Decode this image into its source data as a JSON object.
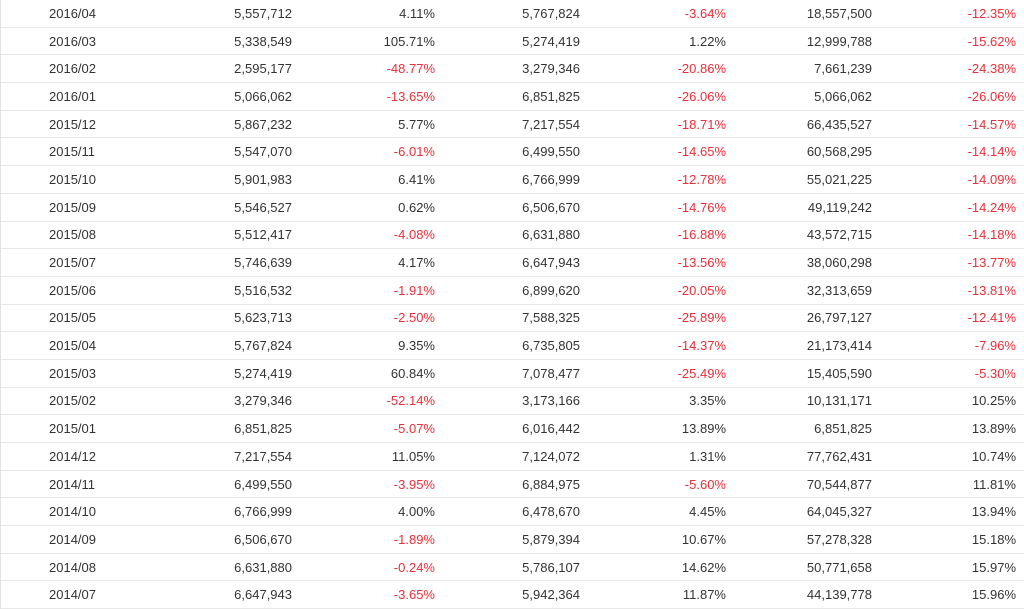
{
  "colors": {
    "negative": "#e8303a",
    "text": "#333333",
    "grid": "#e8e8e8"
  },
  "rows": [
    {
      "month": "2016/04",
      "v1": "5,557,712",
      "p1": "4.11%",
      "v2": "5,767,824",
      "p2": "-3.64%",
      "v3": "18,557,500",
      "p3": "-12.35%"
    },
    {
      "month": "2016/03",
      "v1": "5,338,549",
      "p1": "105.71%",
      "v2": "5,274,419",
      "p2": "1.22%",
      "v3": "12,999,788",
      "p3": "-15.62%"
    },
    {
      "month": "2016/02",
      "v1": "2,595,177",
      "p1": "-48.77%",
      "v2": "3,279,346",
      "p2": "-20.86%",
      "v3": "7,661,239",
      "p3": "-24.38%"
    },
    {
      "month": "2016/01",
      "v1": "5,066,062",
      "p1": "-13.65%",
      "v2": "6,851,825",
      "p2": "-26.06%",
      "v3": "5,066,062",
      "p3": "-26.06%"
    },
    {
      "month": "2015/12",
      "v1": "5,867,232",
      "p1": "5.77%",
      "v2": "7,217,554",
      "p2": "-18.71%",
      "v3": "66,435,527",
      "p3": "-14.57%"
    },
    {
      "month": "2015/11",
      "v1": "5,547,070",
      "p1": "-6.01%",
      "v2": "6,499,550",
      "p2": "-14.65%",
      "v3": "60,568,295",
      "p3": "-14.14%"
    },
    {
      "month": "2015/10",
      "v1": "5,901,983",
      "p1": "6.41%",
      "v2": "6,766,999",
      "p2": "-12.78%",
      "v3": "55,021,225",
      "p3": "-14.09%"
    },
    {
      "month": "2015/09",
      "v1": "5,546,527",
      "p1": "0.62%",
      "v2": "6,506,670",
      "p2": "-14.76%",
      "v3": "49,119,242",
      "p3": "-14.24%"
    },
    {
      "month": "2015/08",
      "v1": "5,512,417",
      "p1": "-4.08%",
      "v2": "6,631,880",
      "p2": "-16.88%",
      "v3": "43,572,715",
      "p3": "-14.18%"
    },
    {
      "month": "2015/07",
      "v1": "5,746,639",
      "p1": "4.17%",
      "v2": "6,647,943",
      "p2": "-13.56%",
      "v3": "38,060,298",
      "p3": "-13.77%"
    },
    {
      "month": "2015/06",
      "v1": "5,516,532",
      "p1": "-1.91%",
      "v2": "6,899,620",
      "p2": "-20.05%",
      "v3": "32,313,659",
      "p3": "-13.81%"
    },
    {
      "month": "2015/05",
      "v1": "5,623,713",
      "p1": "-2.50%",
      "v2": "7,588,325",
      "p2": "-25.89%",
      "v3": "26,797,127",
      "p3": "-12.41%"
    },
    {
      "month": "2015/04",
      "v1": "5,767,824",
      "p1": "9.35%",
      "v2": "6,735,805",
      "p2": "-14.37%",
      "v3": "21,173,414",
      "p3": "-7.96%"
    },
    {
      "month": "2015/03",
      "v1": "5,274,419",
      "p1": "60.84%",
      "v2": "7,078,477",
      "p2": "-25.49%",
      "v3": "15,405,590",
      "p3": "-5.30%"
    },
    {
      "month": "2015/02",
      "v1": "3,279,346",
      "p1": "-52.14%",
      "v2": "3,173,166",
      "p2": "3.35%",
      "v3": "10,131,171",
      "p3": "10.25%"
    },
    {
      "month": "2015/01",
      "v1": "6,851,825",
      "p1": "-5.07%",
      "v2": "6,016,442",
      "p2": "13.89%",
      "v3": "6,851,825",
      "p3": "13.89%"
    },
    {
      "month": "2014/12",
      "v1": "7,217,554",
      "p1": "11.05%",
      "v2": "7,124,072",
      "p2": "1.31%",
      "v3": "77,762,431",
      "p3": "10.74%"
    },
    {
      "month": "2014/11",
      "v1": "6,499,550",
      "p1": "-3.95%",
      "v2": "6,884,975",
      "p2": "-5.60%",
      "v3": "70,544,877",
      "p3": "11.81%"
    },
    {
      "month": "2014/10",
      "v1": "6,766,999",
      "p1": "4.00%",
      "v2": "6,478,670",
      "p2": "4.45%",
      "v3": "64,045,327",
      "p3": "13.94%"
    },
    {
      "month": "2014/09",
      "v1": "6,506,670",
      "p1": "-1.89%",
      "v2": "5,879,394",
      "p2": "10.67%",
      "v3": "57,278,328",
      "p3": "15.18%"
    },
    {
      "month": "2014/08",
      "v1": "6,631,880",
      "p1": "-0.24%",
      "v2": "5,786,107",
      "p2": "14.62%",
      "v3": "50,771,658",
      "p3": "15.97%"
    },
    {
      "month": "2014/07",
      "v1": "6,647,943",
      "p1": "-3.65%",
      "v2": "5,942,364",
      "p2": "11.87%",
      "v3": "44,139,778",
      "p3": "15.96%"
    }
  ]
}
